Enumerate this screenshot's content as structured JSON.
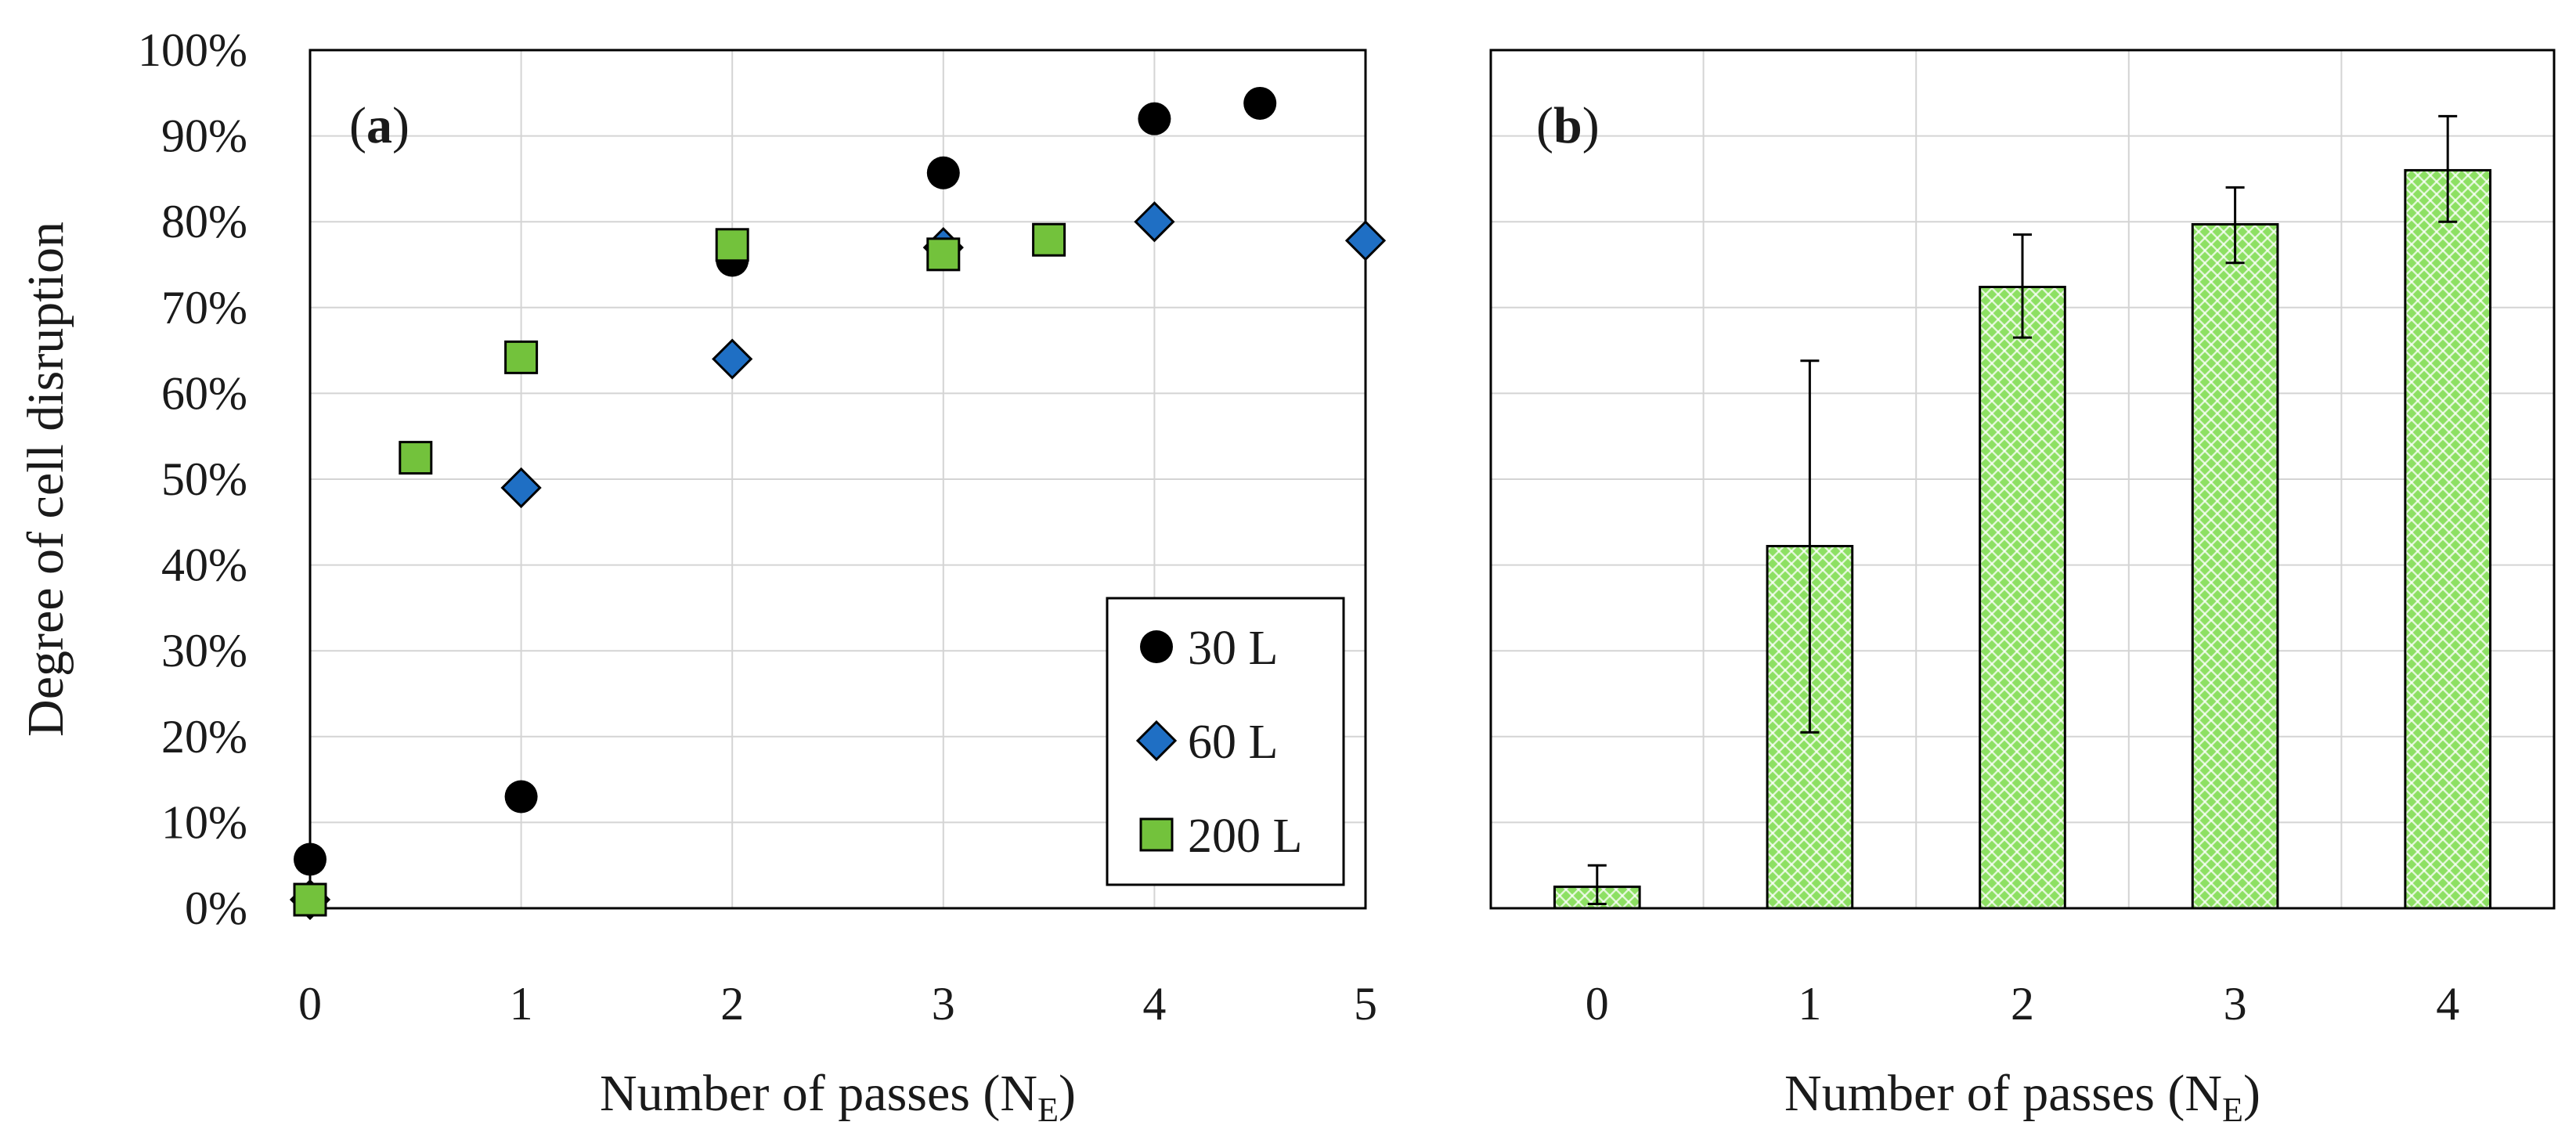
{
  "chart_data": [
    {
      "panel": "a",
      "type": "scatter",
      "panel_label": "(a)",
      "panel_letter": "a",
      "xlabel": "Number of passes (N",
      "xlabel_sub": "E",
      "xlabel_suffix": ")",
      "ylabel": "Degree of cell disruption",
      "xlim": [
        0,
        5
      ],
      "ylim": [
        0,
        1
      ],
      "xticks": [
        "0",
        "1",
        "2",
        "3",
        "4",
        "5"
      ],
      "yticks": [
        "0%",
        "10%",
        "20%",
        "30%",
        "40%",
        "50%",
        "60%",
        "70%",
        "80%",
        "90%",
        "100%"
      ],
      "grid": true,
      "legend_position": "bottom-right",
      "series": [
        {
          "name": "30 L",
          "marker": "circle",
          "color": "#000000",
          "points": [
            [
              0,
              0.057
            ],
            [
              1,
              0.13
            ],
            [
              2,
              0.755
            ],
            [
              3,
              0.857
            ],
            [
              4,
              0.92
            ],
            [
              4.5,
              0.938
            ]
          ]
        },
        {
          "name": "60 L",
          "marker": "diamond",
          "color": "#1f6fc4",
          "points": [
            [
              0,
              0.01
            ],
            [
              1,
              0.49
            ],
            [
              2,
              0.64
            ],
            [
              3,
              0.77
            ],
            [
              4,
              0.8
            ],
            [
              5,
              0.778
            ]
          ]
        },
        {
          "name": "200 L",
          "marker": "square",
          "color": "#73c23c",
          "points": [
            [
              0,
              0.01
            ],
            [
              0.5,
              0.525
            ],
            [
              1,
              0.642
            ],
            [
              2,
              0.773
            ],
            [
              3,
              0.762
            ],
            [
              3.5,
              0.779
            ]
          ]
        }
      ]
    },
    {
      "panel": "b",
      "type": "bar",
      "panel_label": "(b)",
      "panel_letter": "b",
      "xlabel": "Number of passes (N",
      "xlabel_sub": "E",
      "xlabel_suffix": ")",
      "ylim": [
        0,
        1
      ],
      "grid": true,
      "bar_color": "#7ed957",
      "categories": [
        "0",
        "1",
        "2",
        "3",
        "4"
      ],
      "values": [
        0.025,
        0.422,
        0.724,
        0.797,
        0.86
      ],
      "error_low": [
        0.005,
        0.205,
        0.665,
        0.752,
        0.8
      ],
      "error_high": [
        0.05,
        0.638,
        0.785,
        0.84,
        0.923
      ]
    }
  ]
}
